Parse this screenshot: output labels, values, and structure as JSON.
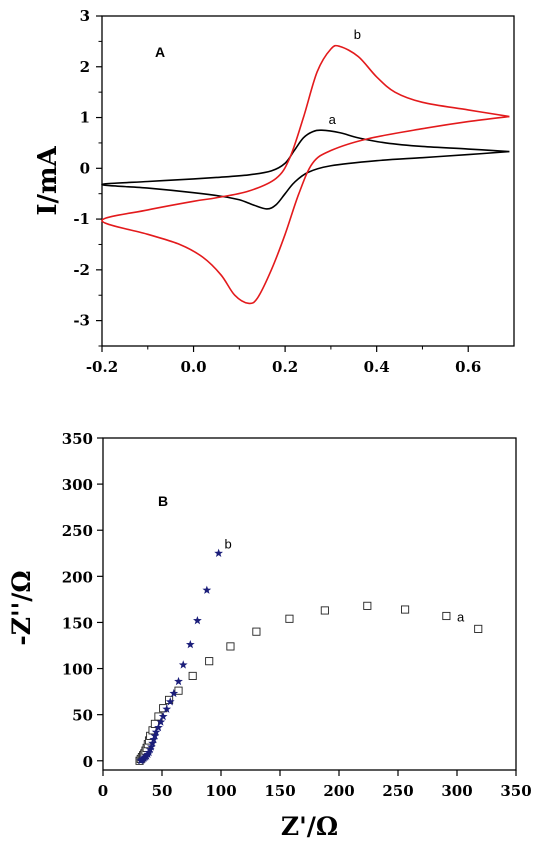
{
  "chart_data": [
    {
      "type": "line",
      "panel_label": "A",
      "xlabel": "",
      "ylabel": "I/mA",
      "xlim": [
        -0.2,
        0.7
      ],
      "ylim": [
        -3.5,
        3
      ],
      "x_ticks": [
        -0.2,
        0.0,
        0.2,
        0.4,
        0.6
      ],
      "x_tick_labels": [
        "-0.2",
        "0.0",
        "0.2",
        "0.4",
        "0.6"
      ],
      "y_ticks": [
        -3,
        -2,
        -1,
        0,
        1,
        2,
        3
      ],
      "y_tick_labels": [
        "-3",
        "-2",
        "-1",
        "0",
        "1",
        "2",
        "3"
      ],
      "grid": false,
      "series": [
        {
          "label": "a",
          "color": "#000000",
          "points": [
            [
              0.69,
              0.33
            ],
            [
              0.6,
              0.38
            ],
            [
              0.5,
              0.43
            ],
            [
              0.42,
              0.5
            ],
            [
              0.36,
              0.6
            ],
            [
              0.32,
              0.7
            ],
            [
              0.28,
              0.75
            ],
            [
              0.26,
              0.72
            ],
            [
              0.24,
              0.6
            ],
            [
              0.22,
              0.35
            ],
            [
              0.2,
              0.1
            ],
            [
              0.17,
              -0.05
            ],
            [
              0.12,
              -0.13
            ],
            [
              0.05,
              -0.18
            ],
            [
              0.0,
              -0.21
            ],
            [
              -0.1,
              -0.26
            ],
            [
              -0.2,
              -0.32
            ],
            [
              -0.1,
              -0.39
            ],
            [
              0.0,
              -0.48
            ],
            [
              0.06,
              -0.55
            ],
            [
              0.1,
              -0.62
            ],
            [
              0.13,
              -0.72
            ],
            [
              0.16,
              -0.8
            ],
            [
              0.18,
              -0.72
            ],
            [
              0.2,
              -0.5
            ],
            [
              0.22,
              -0.28
            ],
            [
              0.25,
              -0.08
            ],
            [
              0.3,
              0.05
            ],
            [
              0.4,
              0.15
            ],
            [
              0.5,
              0.21
            ],
            [
              0.6,
              0.27
            ],
            [
              0.69,
              0.33
            ]
          ]
        },
        {
          "label": "b",
          "color": "#e31a1c",
          "points": [
            [
              0.69,
              1.02
            ],
            [
              0.6,
              1.15
            ],
            [
              0.5,
              1.3
            ],
            [
              0.44,
              1.5
            ],
            [
              0.4,
              1.8
            ],
            [
              0.36,
              2.2
            ],
            [
              0.32,
              2.4
            ],
            [
              0.3,
              2.35
            ],
            [
              0.27,
              1.9
            ],
            [
              0.24,
              1.0
            ],
            [
              0.21,
              0.2
            ],
            [
              0.18,
              -0.2
            ],
            [
              0.12,
              -0.45
            ],
            [
              0.05,
              -0.58
            ],
            [
              0.0,
              -0.65
            ],
            [
              -0.1,
              -0.82
            ],
            [
              -0.2,
              -1.03
            ],
            [
              -0.1,
              -1.3
            ],
            [
              -0.03,
              -1.5
            ],
            [
              0.02,
              -1.75
            ],
            [
              0.06,
              -2.1
            ],
            [
              0.09,
              -2.5
            ],
            [
              0.12,
              -2.66
            ],
            [
              0.14,
              -2.55
            ],
            [
              0.17,
              -2.0
            ],
            [
              0.2,
              -1.3
            ],
            [
              0.23,
              -0.5
            ],
            [
              0.26,
              0.1
            ],
            [
              0.3,
              0.35
            ],
            [
              0.38,
              0.58
            ],
            [
              0.5,
              0.78
            ],
            [
              0.6,
              0.92
            ],
            [
              0.69,
              1.02
            ]
          ]
        }
      ]
    },
    {
      "type": "scatter",
      "panel_label": "B",
      "xlabel": "Z'/Ω",
      "ylabel": "-Z''/Ω",
      "xlim": [
        0,
        350
      ],
      "ylim": [
        -10,
        350
      ],
      "x_ticks": [
        0,
        50,
        100,
        150,
        200,
        250,
        300,
        350
      ],
      "y_ticks": [
        0,
        50,
        100,
        150,
        200,
        250,
        300,
        350
      ],
      "grid": false,
      "series": [
        {
          "label": "a",
          "marker": "open-square",
          "color": "#222222",
          "points": [
            [
              31,
              0
            ],
            [
              32,
              2
            ],
            [
              33,
              4
            ],
            [
              34,
              6
            ],
            [
              35,
              8
            ],
            [
              36,
              11
            ],
            [
              37,
              14
            ],
            [
              38,
              18
            ],
            [
              39,
              22
            ],
            [
              40,
              27
            ],
            [
              42,
              33
            ],
            [
              44,
              40
            ],
            [
              47,
              48
            ],
            [
              51,
              57
            ],
            [
              56,
              66
            ],
            [
              64,
              76
            ],
            [
              76,
              92
            ],
            [
              90,
              108
            ],
            [
              108,
              124
            ],
            [
              130,
              140
            ],
            [
              158,
              154
            ],
            [
              188,
              163
            ],
            [
              224,
              168
            ],
            [
              256,
              164
            ],
            [
              291,
              157
            ],
            [
              318,
              143
            ]
          ]
        },
        {
          "label": "b",
          "marker": "star",
          "color": "#1b1e7a",
          "points": [
            [
              32,
              0
            ],
            [
              33,
              1
            ],
            [
              34,
              2
            ],
            [
              35,
              3
            ],
            [
              36,
              4
            ],
            [
              37,
              5
            ],
            [
              38,
              7
            ],
            [
              39,
              9
            ],
            [
              40,
              12
            ],
            [
              41,
              15
            ],
            [
              42,
              19
            ],
            [
              43,
              23
            ],
            [
              44,
              27
            ],
            [
              45,
              31
            ],
            [
              47,
              36
            ],
            [
              49,
              42
            ],
            [
              51,
              48
            ],
            [
              54,
              56
            ],
            [
              57,
              64
            ],
            [
              60,
              73
            ],
            [
              64,
              86
            ],
            [
              68,
              104
            ],
            [
              74,
              126
            ],
            [
              80,
              152
            ],
            [
              88,
              185
            ],
            [
              98,
              225
            ]
          ]
        }
      ]
    }
  ]
}
